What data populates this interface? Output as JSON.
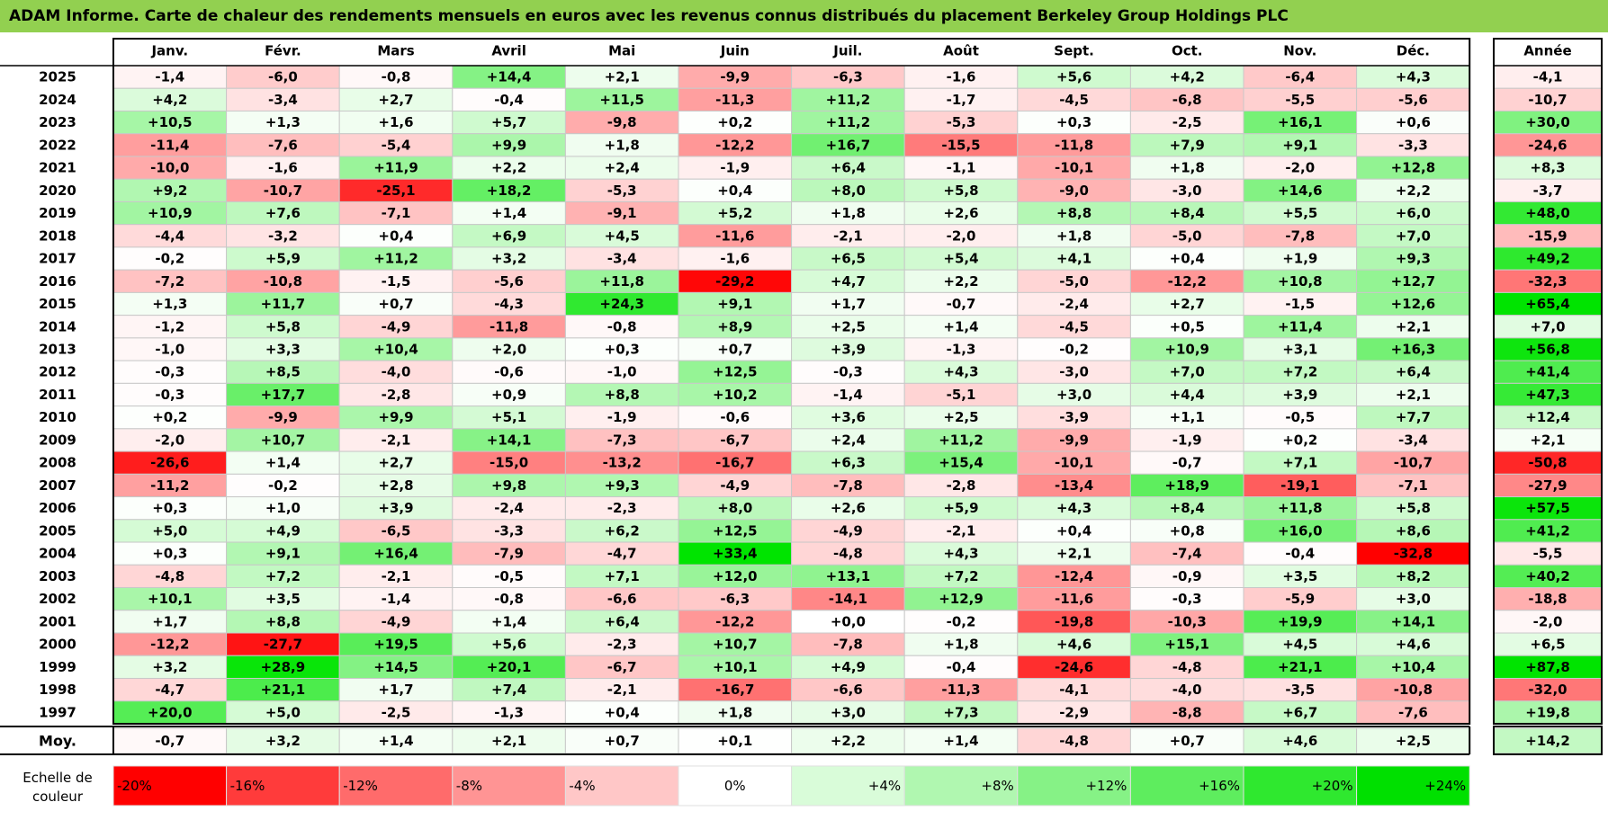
{
  "title": "ADAM Informe. Carte de chaleur des rendements mensuels en euros avec les revenus connus distribués du placement Berkeley Group Holdings PLC",
  "chart_data": {
    "type": "heatmap",
    "columns": [
      "Janv.",
      "Févr.",
      "Mars",
      "Avril",
      "Mai",
      "Juin",
      "Juil.",
      "Août",
      "Sept.",
      "Oct.",
      "Nov.",
      "Déc."
    ],
    "year_header": "Année",
    "rows": [
      {
        "year": "2025",
        "values": [
          "-1,4",
          "-6,0",
          "-0,8",
          "+14,4",
          "+2,1",
          "-9,9",
          "-6,3",
          "-1,6",
          "+5,6",
          "+4,2",
          "-6,4",
          "+4,3"
        ],
        "total": "-4,1"
      },
      {
        "year": "2024",
        "values": [
          "+4,2",
          "-3,4",
          "+2,7",
          "-0,4",
          "+11,5",
          "-11,3",
          "+11,2",
          "-1,7",
          "-4,5",
          "-6,8",
          "-5,5",
          "-5,6"
        ],
        "total": "-10,7"
      },
      {
        "year": "2023",
        "values": [
          "+10,5",
          "+1,3",
          "+1,6",
          "+5,7",
          "-9,8",
          "+0,2",
          "+11,2",
          "-5,3",
          "+0,3",
          "-2,5",
          "+16,1",
          "+0,6"
        ],
        "total": "+30,0"
      },
      {
        "year": "2022",
        "values": [
          "-11,4",
          "-7,6",
          "-5,4",
          "+9,9",
          "+1,8",
          "-12,2",
          "+16,7",
          "-15,5",
          "-11,8",
          "+7,9",
          "+9,1",
          "-3,3"
        ],
        "total": "-24,6"
      },
      {
        "year": "2021",
        "values": [
          "-10,0",
          "-1,6",
          "+11,9",
          "+2,2",
          "+2,4",
          "-1,9",
          "+6,4",
          "-1,1",
          "-10,1",
          "+1,8",
          "-2,0",
          "+12,8"
        ],
        "total": "+8,3"
      },
      {
        "year": "2020",
        "values": [
          "+9,2",
          "-10,7",
          "-25,1",
          "+18,2",
          "-5,3",
          "+0,4",
          "+8,0",
          "+5,8",
          "-9,0",
          "-3,0",
          "+14,6",
          "+2,2"
        ],
        "total": "-3,7"
      },
      {
        "year": "2019",
        "values": [
          "+10,9",
          "+7,6",
          "-7,1",
          "+1,4",
          "-9,1",
          "+5,2",
          "+1,8",
          "+2,6",
          "+8,8",
          "+8,4",
          "+5,5",
          "+6,0"
        ],
        "total": "+48,0"
      },
      {
        "year": "2018",
        "values": [
          "-4,4",
          "-3,2",
          "+0,4",
          "+6,9",
          "+4,5",
          "-11,6",
          "-2,1",
          "-2,0",
          "+1,8",
          "-5,0",
          "-7,8",
          "+7,0"
        ],
        "total": "-15,9"
      },
      {
        "year": "2017",
        "values": [
          "-0,2",
          "+5,9",
          "+11,2",
          "+3,2",
          "-3,4",
          "-1,6",
          "+6,5",
          "+5,4",
          "+4,1",
          "+0,4",
          "+1,9",
          "+9,3"
        ],
        "total": "+49,2"
      },
      {
        "year": "2016",
        "values": [
          "-7,2",
          "-10,8",
          "-1,5",
          "-5,6",
          "+11,8",
          "-29,2",
          "+4,7",
          "+2,2",
          "-5,0",
          "-12,2",
          "+10,8",
          "+12,7"
        ],
        "total": "-32,3"
      },
      {
        "year": "2015",
        "values": [
          "+1,3",
          "+11,7",
          "+0,7",
          "-4,3",
          "+24,3",
          "+9,1",
          "+1,7",
          "-0,7",
          "-2,4",
          "+2,7",
          "-1,5",
          "+12,6"
        ],
        "total": "+65,4"
      },
      {
        "year": "2014",
        "values": [
          "-1,2",
          "+5,8",
          "-4,9",
          "-11,8",
          "-0,8",
          "+8,9",
          "+2,5",
          "+1,4",
          "-4,5",
          "+0,5",
          "+11,4",
          "+2,1"
        ],
        "total": "+7,0"
      },
      {
        "year": "2013",
        "values": [
          "-1,0",
          "+3,3",
          "+10,4",
          "+2,0",
          "+0,3",
          "+0,7",
          "+3,9",
          "-1,3",
          "-0,2",
          "+10,9",
          "+3,1",
          "+16,3"
        ],
        "total": "+56,8"
      },
      {
        "year": "2012",
        "values": [
          "-0,3",
          "+8,5",
          "-4,0",
          "-0,6",
          "-1,0",
          "+12,5",
          "-0,3",
          "+4,3",
          "-3,0",
          "+7,0",
          "+7,2",
          "+6,4"
        ],
        "total": "+41,4"
      },
      {
        "year": "2011",
        "values": [
          "-0,3",
          "+17,7",
          "-2,8",
          "+0,9",
          "+8,8",
          "+10,2",
          "-1,4",
          "-5,1",
          "+3,0",
          "+4,4",
          "+3,9",
          "+2,1"
        ],
        "total": "+47,3"
      },
      {
        "year": "2010",
        "values": [
          "+0,2",
          "-9,9",
          "+9,9",
          "+5,1",
          "-1,9",
          "-0,6",
          "+3,6",
          "+2,5",
          "-3,9",
          "+1,1",
          "-0,5",
          "+7,7"
        ],
        "total": "+12,4"
      },
      {
        "year": "2009",
        "values": [
          "-2,0",
          "+10,7",
          "-2,1",
          "+14,1",
          "-7,3",
          "-6,7",
          "+2,4",
          "+11,2",
          "-9,9",
          "-1,9",
          "+0,2",
          "-3,4"
        ],
        "total": "+2,1"
      },
      {
        "year": "2008",
        "values": [
          "-26,6",
          "+1,4",
          "+2,7",
          "-15,0",
          "-13,2",
          "-16,7",
          "+6,3",
          "+15,4",
          "-10,1",
          "-0,7",
          "+7,1",
          "-10,7"
        ],
        "total": "-50,8"
      },
      {
        "year": "2007",
        "values": [
          "-11,2",
          "-0,2",
          "+2,8",
          "+9,8",
          "+9,3",
          "-4,9",
          "-7,8",
          "-2,8",
          "-13,4",
          "+18,9",
          "-19,1",
          "-7,1"
        ],
        "total": "-27,9"
      },
      {
        "year": "2006",
        "values": [
          "+0,3",
          "+1,0",
          "+3,9",
          "-2,4",
          "-2,3",
          "+8,0",
          "+2,6",
          "+5,9",
          "+4,3",
          "+8,4",
          "+11,8",
          "+5,8"
        ],
        "total": "+57,5"
      },
      {
        "year": "2005",
        "values": [
          "+5,0",
          "+4,9",
          "-6,5",
          "-3,3",
          "+6,2",
          "+12,5",
          "-4,9",
          "-2,1",
          "+0,4",
          "+0,8",
          "+16,0",
          "+8,6"
        ],
        "total": "+41,2"
      },
      {
        "year": "2004",
        "values": [
          "+0,3",
          "+9,1",
          "+16,4",
          "-7,9",
          "-4,7",
          "+33,4",
          "-4,8",
          "+4,3",
          "+2,1",
          "-7,4",
          "-0,4",
          "-32,8"
        ],
        "total": "-5,5"
      },
      {
        "year": "2003",
        "values": [
          "-4,8",
          "+7,2",
          "-2,1",
          "-0,5",
          "+7,1",
          "+12,0",
          "+13,1",
          "+7,2",
          "-12,4",
          "-0,9",
          "+3,5",
          "+8,2"
        ],
        "total": "+40,2"
      },
      {
        "year": "2002",
        "values": [
          "+10,1",
          "+3,5",
          "-1,4",
          "-0,8",
          "-6,6",
          "-6,3",
          "-14,1",
          "+12,9",
          "-11,6",
          "-0,3",
          "-5,9",
          "+3,0"
        ],
        "total": "-18,8"
      },
      {
        "year": "2001",
        "values": [
          "+1,7",
          "+8,8",
          "-4,9",
          "+1,4",
          "+6,4",
          "-12,2",
          "+0,0",
          "-0,2",
          "-19,8",
          "-10,3",
          "+19,9",
          "+14,1"
        ],
        "total": "-2,0"
      },
      {
        "year": "2000",
        "values": [
          "-12,2",
          "-27,7",
          "+19,5",
          "+5,6",
          "-2,3",
          "+10,7",
          "-7,8",
          "+1,8",
          "+4,6",
          "+15,1",
          "+4,5",
          "+4,6"
        ],
        "total": "+6,5"
      },
      {
        "year": "1999",
        "values": [
          "+3,2",
          "+28,9",
          "+14,5",
          "+20,1",
          "-6,7",
          "+10,1",
          "+4,9",
          "-0,4",
          "-24,6",
          "-4,8",
          "+21,1",
          "+10,4"
        ],
        "total": "+87,8"
      },
      {
        "year": "1998",
        "values": [
          "-4,7",
          "+21,1",
          "+1,7",
          "+7,4",
          "-2,1",
          "-16,7",
          "-6,6",
          "-11,3",
          "-4,1",
          "-4,0",
          "-3,5",
          "-10,8"
        ],
        "total": "-32,0"
      },
      {
        "year": "1997",
        "values": [
          "+20,0",
          "+5,0",
          "-2,5",
          "-1,3",
          "+0,4",
          "+1,8",
          "+3,0",
          "+7,3",
          "-2,9",
          "-8,8",
          "+6,7",
          "-7,6"
        ],
        "total": "+19,8"
      }
    ],
    "average": {
      "label": "Moy.",
      "values": [
        "-0,7",
        "+3,2",
        "+1,4",
        "+2,1",
        "+0,7",
        "+0,1",
        "+2,2",
        "+1,4",
        "-4,8",
        "+0,7",
        "+4,6",
        "+2,5"
      ],
      "total": "+14,2"
    },
    "scale": {
      "label_line1": "Echelle de",
      "label_line2": "couleur",
      "items": [
        {
          "label": "-20%",
          "value": -20,
          "color": "#ff0000",
          "align": "left"
        },
        {
          "label": "-16%",
          "value": -16,
          "color": "#ff3b3b",
          "align": "left"
        },
        {
          "label": "-12%",
          "value": -12,
          "color": "#ff6b6b",
          "align": "left"
        },
        {
          "label": "-8%",
          "value": -8,
          "color": "#ff9494",
          "align": "left"
        },
        {
          "label": "-4%",
          "value": -4,
          "color": "#ffc7c7",
          "align": "left"
        },
        {
          "label": "0%",
          "value": 0,
          "color": "#ffffff",
          "align": "center"
        },
        {
          "label": "+4%",
          "value": 4,
          "color": "#d9fcd9",
          "align": "right"
        },
        {
          "label": "+8%",
          "value": 8,
          "color": "#b0f7b0",
          "align": "right"
        },
        {
          "label": "+12%",
          "value": 12,
          "color": "#86f286",
          "align": "right"
        },
        {
          "label": "+16%",
          "value": 16,
          "color": "#5eed5e",
          "align": "right"
        },
        {
          "label": "+20%",
          "value": 20,
          "color": "#2fe82f",
          "align": "right"
        },
        {
          "label": "+24%",
          "value": 24,
          "color": "#00e000",
          "align": "right"
        }
      ]
    }
  }
}
